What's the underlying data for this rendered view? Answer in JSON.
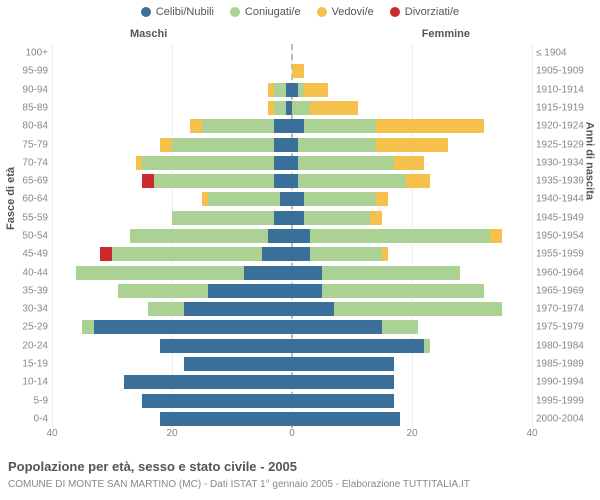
{
  "legend": [
    {
      "label": "Celibi/Nubili",
      "color": "#3a6f9a"
    },
    {
      "label": "Coniugati/e",
      "color": "#abd194"
    },
    {
      "label": "Vedovi/e",
      "color": "#f6c04d"
    },
    {
      "label": "Divorziati/e",
      "color": "#cc2b2b"
    }
  ],
  "headers": {
    "left": "Maschi",
    "right": "Femmine"
  },
  "y_title_left": "Fasce di età",
  "y_title_right": "Anni di nascita",
  "title": "Popolazione per età, sesso e stato civile - 2005",
  "subtitle": "COMUNE DI MONTE SAN MARTINO (MC) - Dati ISTAT 1° gennaio 2005 - Elaborazione TUTTITALIA.IT",
  "axis_max": 40,
  "x_ticks": [
    -40,
    -20,
    0,
    20,
    40
  ],
  "x_tick_labels": [
    "40",
    "20",
    "0",
    "20",
    "40"
  ],
  "age_labels": [
    "0-4",
    "5-9",
    "10-14",
    "15-19",
    "20-24",
    "25-29",
    "30-34",
    "35-39",
    "40-44",
    "45-49",
    "50-54",
    "55-59",
    "60-64",
    "65-69",
    "70-74",
    "75-79",
    "80-84",
    "85-89",
    "90-94",
    "95-99",
    "100+"
  ],
  "year_labels": [
    "2000-2004",
    "1995-1999",
    "1990-1994",
    "1985-1989",
    "1980-1984",
    "1975-1979",
    "1970-1974",
    "1965-1969",
    "1960-1964",
    "1955-1959",
    "1950-1954",
    "1945-1949",
    "1940-1944",
    "1935-1939",
    "1930-1934",
    "1925-1929",
    "1920-1924",
    "1915-1919",
    "1910-1914",
    "1905-1909",
    "≤ 1904"
  ],
  "rows": [
    {
      "m": {
        "cel": 22,
        "con": 0,
        "ved": 0,
        "div": 0
      },
      "f": {
        "cel": 18,
        "con": 0,
        "ved": 0,
        "div": 0
      }
    },
    {
      "m": {
        "cel": 25,
        "con": 0,
        "ved": 0,
        "div": 0
      },
      "f": {
        "cel": 17,
        "con": 0,
        "ved": 0,
        "div": 0
      }
    },
    {
      "m": {
        "cel": 28,
        "con": 0,
        "ved": 0,
        "div": 0
      },
      "f": {
        "cel": 17,
        "con": 0,
        "ved": 0,
        "div": 0
      }
    },
    {
      "m": {
        "cel": 18,
        "con": 0,
        "ved": 0,
        "div": 0
      },
      "f": {
        "cel": 17,
        "con": 0,
        "ved": 0,
        "div": 0
      }
    },
    {
      "m": {
        "cel": 22,
        "con": 0,
        "ved": 0,
        "div": 0
      },
      "f": {
        "cel": 22,
        "con": 1,
        "ved": 0,
        "div": 0
      }
    },
    {
      "m": {
        "cel": 33,
        "con": 2,
        "ved": 0,
        "div": 0
      },
      "f": {
        "cel": 15,
        "con": 6,
        "ved": 0,
        "div": 0
      }
    },
    {
      "m": {
        "cel": 18,
        "con": 6,
        "ved": 0,
        "div": 0
      },
      "f": {
        "cel": 7,
        "con": 28,
        "ved": 0,
        "div": 0
      }
    },
    {
      "m": {
        "cel": 14,
        "con": 15,
        "ved": 0,
        "div": 0
      },
      "f": {
        "cel": 5,
        "con": 27,
        "ved": 0,
        "div": 0
      }
    },
    {
      "m": {
        "cel": 8,
        "con": 28,
        "ved": 0,
        "div": 0
      },
      "f": {
        "cel": 5,
        "con": 23,
        "ved": 0,
        "div": 0
      }
    },
    {
      "m": {
        "cel": 5,
        "con": 25,
        "ved": 0,
        "div": 2
      },
      "f": {
        "cel": 3,
        "con": 12,
        "ved": 1,
        "div": 0
      }
    },
    {
      "m": {
        "cel": 4,
        "con": 23,
        "ved": 0,
        "div": 0
      },
      "f": {
        "cel": 3,
        "con": 30,
        "ved": 2,
        "div": 0
      }
    },
    {
      "m": {
        "cel": 3,
        "con": 17,
        "ved": 0,
        "div": 0
      },
      "f": {
        "cel": 2,
        "con": 11,
        "ved": 2,
        "div": 0
      }
    },
    {
      "m": {
        "cel": 2,
        "con": 12,
        "ved": 1,
        "div": 0
      },
      "f": {
        "cel": 2,
        "con": 12,
        "ved": 2,
        "div": 0
      }
    },
    {
      "m": {
        "cel": 3,
        "con": 20,
        "ved": 0,
        "div": 2
      },
      "f": {
        "cel": 1,
        "con": 18,
        "ved": 4,
        "div": 0
      }
    },
    {
      "m": {
        "cel": 3,
        "con": 22,
        "ved": 1,
        "div": 0
      },
      "f": {
        "cel": 1,
        "con": 16,
        "ved": 5,
        "div": 0
      }
    },
    {
      "m": {
        "cel": 3,
        "con": 17,
        "ved": 2,
        "div": 0
      },
      "f": {
        "cel": 1,
        "con": 13,
        "ved": 12,
        "div": 0
      }
    },
    {
      "m": {
        "cel": 3,
        "con": 12,
        "ved": 2,
        "div": 0
      },
      "f": {
        "cel": 2,
        "con": 12,
        "ved": 18,
        "div": 0
      }
    },
    {
      "m": {
        "cel": 1,
        "con": 2,
        "ved": 1,
        "div": 0
      },
      "f": {
        "cel": 0,
        "con": 3,
        "ved": 8,
        "div": 0
      }
    },
    {
      "m": {
        "cel": 1,
        "con": 2,
        "ved": 1,
        "div": 0
      },
      "f": {
        "cel": 1,
        "con": 1,
        "ved": 4,
        "div": 0
      }
    },
    {
      "m": {
        "cel": 0,
        "con": 0,
        "ved": 0,
        "div": 0
      },
      "f": {
        "cel": 0,
        "con": 0,
        "ved": 2,
        "div": 0
      }
    },
    {
      "m": {
        "cel": 0,
        "con": 0,
        "ved": 0,
        "div": 0
      },
      "f": {
        "cel": 0,
        "con": 0,
        "ved": 0,
        "div": 0
      }
    }
  ]
}
